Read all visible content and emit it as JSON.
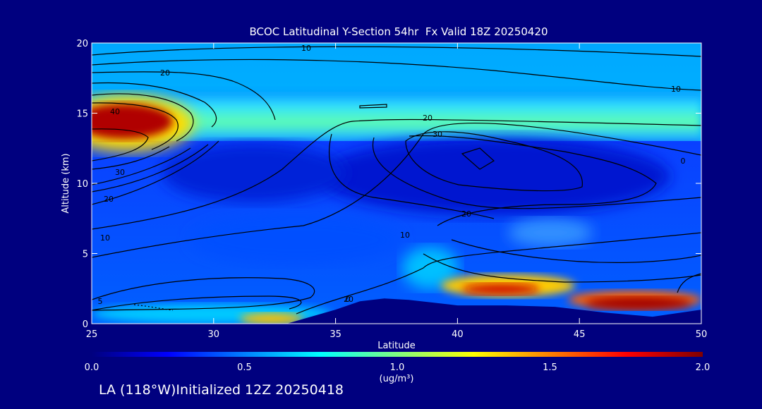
{
  "chart_data": {
    "type": "heatmap",
    "title": "BCOC Latitudinal Y-Section 54hr  Fx Valid 18Z 20250420",
    "xlabel": "Latitude",
    "ylabel": "Altitude (km)",
    "xlim": [
      25,
      50
    ],
    "ylim": [
      0,
      20
    ],
    "xticks": [
      "25",
      "30",
      "35",
      "40",
      "45",
      "50"
    ],
    "yticks": [
      "0",
      "5",
      "10",
      "15",
      "20"
    ],
    "colorbar": {
      "min": 0.0,
      "max": 2.0,
      "ticks": [
        "0.0",
        "0.5",
        "1.0",
        "1.5",
        "2.0"
      ],
      "unit_label": "(ug/m³)",
      "colors": [
        "#00007f",
        "#0000ff",
        "#0080ff",
        "#00ffff",
        "#80ff80",
        "#ffff00",
        "#ff8000",
        "#ff0000",
        "#7f0000"
      ]
    },
    "contour_labels": [
      "10",
      "20",
      "10",
      "40",
      "30",
      "20",
      "10",
      "5",
      "0",
      "20",
      "30",
      "20",
      "10",
      "0",
      "20"
    ],
    "surface_latitudes": [
      25,
      30,
      33,
      35,
      36,
      37,
      38,
      39,
      40,
      42,
      44,
      46,
      48,
      50
    ],
    "surface_altitude_km": [
      0.0,
      0.0,
      0.0,
      1.0,
      1.6,
      1.8,
      1.7,
      1.5,
      1.3,
      1.3,
      1.2,
      0.8,
      0.5,
      1.0
    ],
    "concentration_regions": [
      {
        "lat": [
          25,
          28.5
        ],
        "alt_km": [
          12.8,
          15.5
        ],
        "value": 2.0
      },
      {
        "lat": [
          25,
          50
        ],
        "alt_km": [
          14.0,
          16.5
        ],
        "value": 0.85
      },
      {
        "lat": [
          27,
          34
        ],
        "alt_km": [
          8.0,
          12.5
        ],
        "value": 0.2
      },
      {
        "lat": [
          35,
          48
        ],
        "alt_km": [
          8.0,
          13.0
        ],
        "value": 0.15
      },
      {
        "lat": [
          39.5,
          44.5
        ],
        "alt_km": [
          1.8,
          3.3
        ],
        "value": 1.7
      },
      {
        "lat": [
          44,
          50
        ],
        "alt_km": [
          0.6,
          2.2
        ],
        "value": 1.9
      },
      {
        "lat": [
          26,
          35
        ],
        "alt_km": [
          0.0,
          1.4
        ],
        "value": 0.75
      }
    ]
  },
  "footer": {
    "text": "LA (118°W)Initialized 12Z 20250418"
  }
}
